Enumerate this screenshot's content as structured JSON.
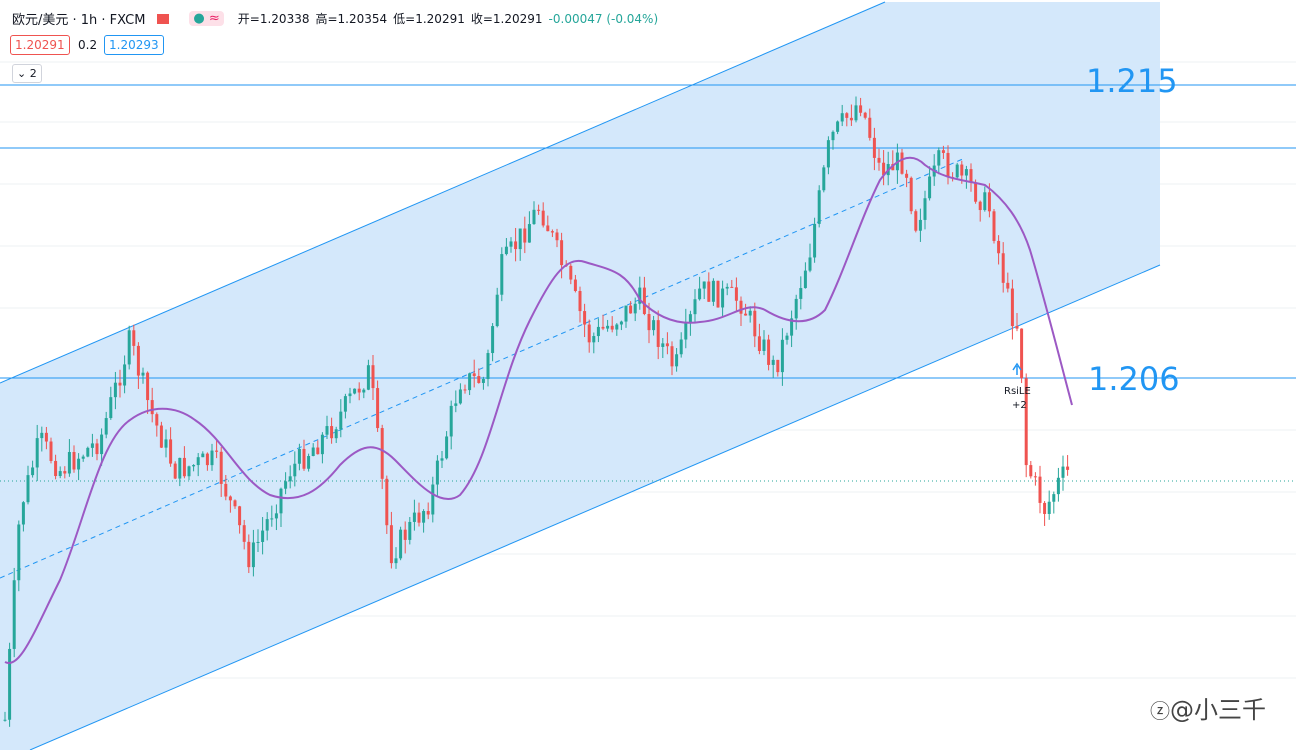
{
  "header": {
    "symbol": "欧元/美元 · 1h · FXCM",
    "open": "开=1.20338",
    "high": "高=1.20354",
    "low": "低=1.20291",
    "close": "收=1.20291",
    "change": "-0.00047 (-0.04%)"
  },
  "trade": {
    "sell": "1.20291",
    "spread": "0.2",
    "buy": "1.20293"
  },
  "indicators": {
    "count": "2"
  },
  "levels": {
    "upper": "1.215",
    "lower": "1.206"
  },
  "annotation": {
    "signal": "RsiLE",
    "qty": "+2"
  },
  "watermark": {
    "text": "@小三千"
  }
}
